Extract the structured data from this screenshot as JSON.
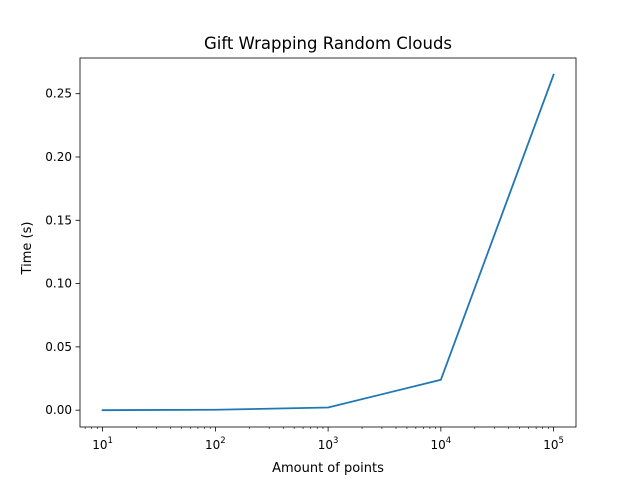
{
  "chart_data": {
    "type": "line",
    "title": "Gift Wrapping Random Clouds",
    "xlabel": "Amount of points",
    "ylabel": "Time (s)",
    "x_scale": "log",
    "x_tick_labels": [
      {
        "base": "10",
        "exp": "1",
        "value": 10
      },
      {
        "base": "10",
        "exp": "2",
        "value": 100
      },
      {
        "base": "10",
        "exp": "3",
        "value": 1000
      },
      {
        "base": "10",
        "exp": "4",
        "value": 10000
      },
      {
        "base": "10",
        "exp": "5",
        "value": 100000
      }
    ],
    "y_tick_labels": [
      "0.00",
      "0.05",
      "0.10",
      "0.15",
      "0.20",
      "0.25"
    ],
    "y_tick_values": [
      0.0,
      0.05,
      0.1,
      0.15,
      0.2,
      0.25
    ],
    "xlim": [
      6.3,
      158000
    ],
    "ylim": [
      -0.0133,
      0.2782
    ],
    "grid": false,
    "series": [
      {
        "color": "#1f77b4",
        "x": [
          10,
          100,
          1000,
          10000,
          100000
        ],
        "y": [
          0.0,
          0.0003,
          0.0021,
          0.024,
          0.265
        ]
      }
    ]
  }
}
